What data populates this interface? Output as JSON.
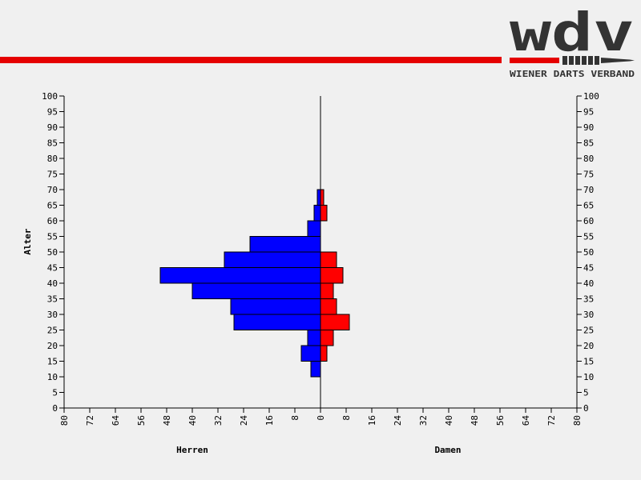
{
  "brand": {
    "logo_text": "wdv",
    "tagline": "WIENER DARTS VERBAND",
    "colors": {
      "dark": "#333333",
      "red": "#e50000"
    }
  },
  "chart_data": {
    "type": "bar",
    "orientation": "horizontal",
    "subtype": "population-pyramid",
    "ylabel": "Alter",
    "left_label": "Herren",
    "right_label": "Damen",
    "age_ticks": [
      0,
      5,
      10,
      15,
      20,
      25,
      30,
      35,
      40,
      45,
      50,
      55,
      60,
      65,
      70,
      75,
      80,
      85,
      90,
      95,
      100
    ],
    "count_ticks": [
      "80",
      "72",
      "64",
      "56",
      "48",
      "40",
      "32",
      "24",
      "16",
      "8",
      "0",
      "8",
      "16",
      "24",
      "32",
      "40",
      "48",
      "56",
      "64",
      "72",
      "80"
    ],
    "age_range": [
      0,
      100
    ],
    "count_range": [
      0,
      80
    ],
    "series": [
      {
        "name": "Herren",
        "color": "#0000ff",
        "bins": [
          {
            "from": 10,
            "to": 15,
            "value": 3
          },
          {
            "from": 15,
            "to": 20,
            "value": 6
          },
          {
            "from": 20,
            "to": 25,
            "value": 4
          },
          {
            "from": 25,
            "to": 30,
            "value": 27
          },
          {
            "from": 30,
            "to": 35,
            "value": 28
          },
          {
            "from": 35,
            "to": 40,
            "value": 40
          },
          {
            "from": 40,
            "to": 45,
            "value": 50
          },
          {
            "from": 45,
            "to": 50,
            "value": 30
          },
          {
            "from": 50,
            "to": 55,
            "value": 22
          },
          {
            "from": 55,
            "to": 60,
            "value": 4
          },
          {
            "from": 60,
            "to": 65,
            "value": 2
          },
          {
            "from": 65,
            "to": 70,
            "value": 1
          }
        ]
      },
      {
        "name": "Damen",
        "color": "#ff0000",
        "bins": [
          {
            "from": 15,
            "to": 20,
            "value": 2
          },
          {
            "from": 20,
            "to": 25,
            "value": 4
          },
          {
            "from": 25,
            "to": 30,
            "value": 9
          },
          {
            "from": 30,
            "to": 35,
            "value": 5
          },
          {
            "from": 35,
            "to": 40,
            "value": 4
          },
          {
            "from": 40,
            "to": 45,
            "value": 7
          },
          {
            "from": 45,
            "to": 50,
            "value": 5
          },
          {
            "from": 60,
            "to": 65,
            "value": 2
          },
          {
            "from": 65,
            "to": 70,
            "value": 1
          }
        ]
      }
    ]
  }
}
